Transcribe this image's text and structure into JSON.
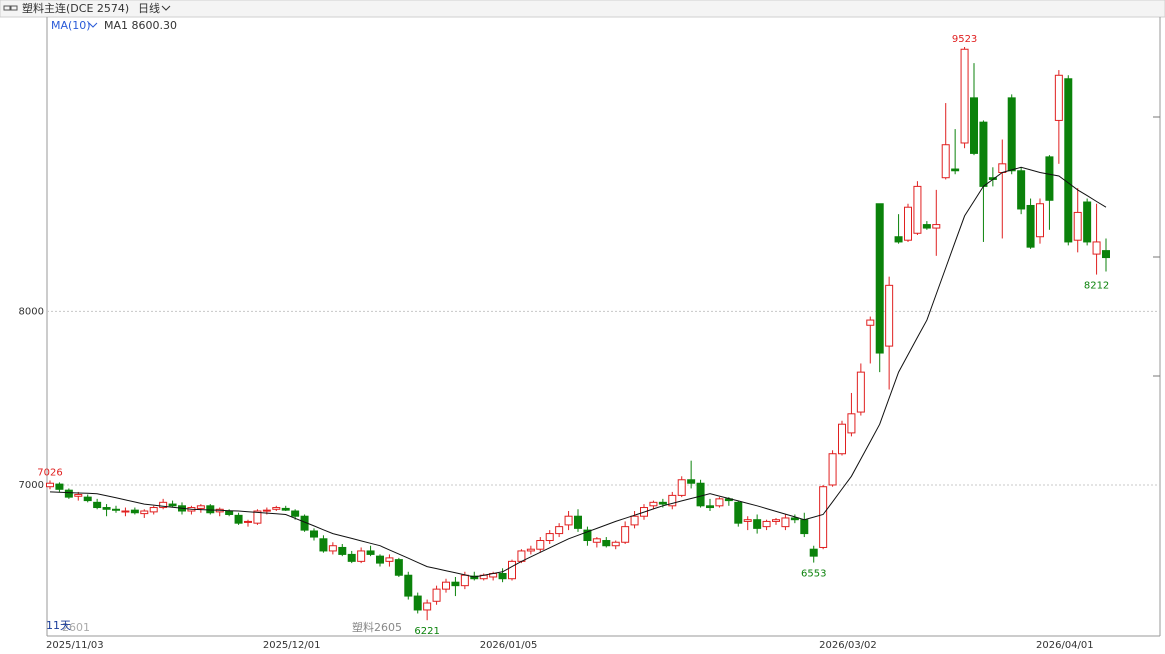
{
  "header": {
    "title": "塑料主连(DCE 2574)",
    "period": "日线"
  },
  "chart_data": {
    "type": "candlestick",
    "indicator": "MA(10)",
    "categories": [
      "2025/11/03",
      null,
      null,
      null,
      null,
      null,
      null,
      null,
      null,
      null,
      null,
      null,
      null,
      null,
      null,
      null,
      null,
      null,
      null,
      null,
      null,
      null,
      null,
      "2025/12/01",
      null,
      null,
      null,
      null,
      null,
      null,
      null,
      null,
      null,
      null,
      null,
      null,
      null,
      null,
      null,
      null,
      null,
      null,
      null,
      null,
      null,
      null,
      "2026/01/05",
      null,
      null,
      null,
      null,
      null,
      null,
      null,
      null,
      null,
      null,
      null,
      null,
      null,
      null,
      null,
      null,
      null,
      null,
      null,
      null,
      null,
      null,
      null,
      null,
      null,
      null,
      null,
      null,
      null,
      null,
      null,
      null,
      null,
      null,
      null,
      "2026/03/02",
      null,
      null,
      null,
      null,
      null,
      null,
      null,
      null,
      null,
      null,
      null,
      null,
      null,
      null,
      null,
      null,
      null,
      null,
      null,
      null,
      null,
      null,
      "2026/04/01",
      null,
      null,
      null,
      null,
      null,
      null,
      null,
      null
    ],
    "ohlc": [
      [
        6990,
        7026,
        6975,
        7010
      ],
      [
        7005,
        7015,
        6960,
        6975
      ],
      [
        6970,
        6980,
        6920,
        6930
      ],
      [
        6935,
        6960,
        6910,
        6945
      ],
      [
        6930,
        6945,
        6900,
        6910
      ],
      [
        6900,
        6920,
        6860,
        6870
      ],
      [
        6870,
        6890,
        6820,
        6860
      ],
      [
        6860,
        6880,
        6840,
        6855
      ],
      [
        6845,
        6870,
        6820,
        6850
      ],
      [
        6855,
        6870,
        6830,
        6840
      ],
      [
        6835,
        6860,
        6810,
        6850
      ],
      [
        6845,
        6880,
        6830,
        6870
      ],
      [
        6870,
        6920,
        6860,
        6900
      ],
      [
        6890,
        6910,
        6870,
        6880
      ],
      [
        6880,
        6900,
        6830,
        6850
      ],
      [
        6850,
        6880,
        6830,
        6870
      ],
      [
        6865,
        6890,
        6840,
        6880
      ],
      [
        6880,
        6890,
        6830,
        6840
      ],
      [
        6845,
        6870,
        6820,
        6860
      ],
      [
        6850,
        6860,
        6820,
        6830
      ],
      [
        6825,
        6840,
        6770,
        6780
      ],
      [
        6785,
        6800,
        6760,
        6790
      ],
      [
        6780,
        6860,
        6770,
        6850
      ],
      [
        6850,
        6870,
        6830,
        6855
      ],
      [
        6860,
        6880,
        6850,
        6870
      ],
      [
        6865,
        6880,
        6850,
        6855
      ],
      [
        6850,
        6860,
        6800,
        6820
      ],
      [
        6820,
        6830,
        6730,
        6740
      ],
      [
        6735,
        6750,
        6680,
        6700
      ],
      [
        6690,
        6710,
        6610,
        6620
      ],
      [
        6620,
        6670,
        6600,
        6650
      ],
      [
        6640,
        6660,
        6590,
        6600
      ],
      [
        6600,
        6620,
        6550,
        6560
      ],
      [
        6560,
        6640,
        6550,
        6620
      ],
      [
        6620,
        6650,
        6590,
        6600
      ],
      [
        6590,
        6600,
        6530,
        6550
      ],
      [
        6560,
        6600,
        6530,
        6580
      ],
      [
        6570,
        6580,
        6470,
        6480
      ],
      [
        6480,
        6500,
        6340,
        6360
      ],
      [
        6360,
        6380,
        6260,
        6280
      ],
      [
        6280,
        6340,
        6221,
        6320
      ],
      [
        6330,
        6420,
        6310,
        6400
      ],
      [
        6400,
        6460,
        6380,
        6440
      ],
      [
        6440,
        6470,
        6360,
        6420
      ],
      [
        6420,
        6500,
        6400,
        6480
      ],
      [
        6475,
        6500,
        6450,
        6460
      ],
      [
        6460,
        6490,
        6450,
        6480
      ],
      [
        6470,
        6500,
        6450,
        6490
      ],
      [
        6490,
        6520,
        6440,
        6460
      ],
      [
        6460,
        6570,
        6450,
        6560
      ],
      [
        6560,
        6630,
        6550,
        6620
      ],
      [
        6620,
        6650,
        6600,
        6630
      ],
      [
        6630,
        6700,
        6610,
        6680
      ],
      [
        6680,
        6740,
        6660,
        6720
      ],
      [
        6720,
        6780,
        6700,
        6760
      ],
      [
        6770,
        6850,
        6740,
        6820
      ],
      [
        6820,
        6860,
        6730,
        6750
      ],
      [
        6740,
        6760,
        6650,
        6680
      ],
      [
        6670,
        6700,
        6640,
        6690
      ],
      [
        6680,
        6700,
        6640,
        6650
      ],
      [
        6650,
        6680,
        6630,
        6670
      ],
      [
        6670,
        6790,
        6660,
        6760
      ],
      [
        6770,
        6850,
        6750,
        6820
      ],
      [
        6820,
        6890,
        6800,
        6870
      ],
      [
        6880,
        6910,
        6860,
        6900
      ],
      [
        6900,
        6920,
        6870,
        6890
      ],
      [
        6880,
        6960,
        6860,
        6940
      ],
      [
        6940,
        7050,
        6930,
        7030
      ],
      [
        7030,
        7140,
        6980,
        7010
      ],
      [
        7010,
        7030,
        6870,
        6880
      ],
      [
        6880,
        6920,
        6850,
        6870
      ],
      [
        6880,
        6930,
        6870,
        6920
      ],
      [
        6920,
        6930,
        6880,
        6910
      ],
      [
        6900,
        6910,
        6760,
        6780
      ],
      [
        6790,
        6820,
        6740,
        6800
      ],
      [
        6800,
        6830,
        6720,
        6750
      ],
      [
        6760,
        6800,
        6740,
        6790
      ],
      [
        6790,
        6810,
        6770,
        6800
      ],
      [
        6760,
        6830,
        6740,
        6810
      ],
      [
        6810,
        6830,
        6780,
        6800
      ],
      [
        6800,
        6840,
        6700,
        6720
      ],
      [
        6630,
        6650,
        6553,
        6590
      ],
      [
        6640,
        7000,
        6630,
        6990
      ],
      [
        7000,
        7200,
        6990,
        7180
      ],
      [
        7180,
        7370,
        7170,
        7350
      ],
      [
        7300,
        7530,
        7280,
        7410
      ],
      [
        7420,
        7700,
        7400,
        7650
      ],
      [
        7920,
        7970,
        7700,
        7950
      ],
      [
        8620,
        8620,
        7650,
        7760
      ],
      [
        7800,
        8200,
        7550,
        8150
      ],
      [
        8430,
        8560,
        8390,
        8400
      ],
      [
        8410,
        8620,
        8400,
        8600
      ],
      [
        8450,
        8750,
        8440,
        8720
      ],
      [
        8500,
        8520,
        8470,
        8480
      ],
      [
        8480,
        8700,
        8320,
        8500
      ],
      [
        8770,
        9200,
        8760,
        8960
      ],
      [
        8820,
        9050,
        8790,
        8810
      ],
      [
        8970,
        9523,
        8940,
        9510
      ],
      [
        9230,
        9430,
        8900,
        8910
      ],
      [
        9090,
        9100,
        8400,
        8720
      ],
      [
        8770,
        8830,
        8720,
        8760
      ],
      [
        8800,
        8990,
        8420,
        8850
      ],
      [
        9230,
        9250,
        8790,
        8810
      ],
      [
        8810,
        8830,
        8560,
        8590
      ],
      [
        8610,
        8650,
        8360,
        8370
      ],
      [
        8430,
        8650,
        8390,
        8620
      ],
      [
        8890,
        8900,
        8470,
        8640
      ],
      [
        9100,
        9390,
        8850,
        9360
      ],
      [
        9340,
        9360,
        8380,
        8400
      ],
      [
        8410,
        8710,
        8340,
        8570
      ],
      [
        8630,
        8650,
        8380,
        8400
      ],
      [
        8330,
        8620,
        8212,
        8400
      ],
      [
        8350,
        8420,
        8230,
        8310
      ]
    ],
    "ma": {
      "name": "MA1 8600.30",
      "color": "#111111",
      "values": [
        6960,
        6958,
        6956,
        6954,
        6952,
        6950,
        6938,
        6926,
        6914,
        6902,
        6890,
        6884,
        6878,
        6872,
        6866,
        6860,
        6858,
        6856,
        6854,
        6852,
        6850,
        6846,
        6842,
        6838,
        6834,
        6830,
        6808,
        6786,
        6764,
        6742,
        6720,
        6706,
        6692,
        6678,
        6664,
        6650,
        6626,
        6602,
        6578,
        6554,
        6530,
        6518,
        6506,
        6494,
        6482,
        6470,
        6480,
        6490,
        6500,
        6530,
        6560,
        6586,
        6612,
        6638,
        6664,
        6690,
        6710,
        6730,
        6750,
        6770,
        6790,
        6808,
        6826,
        6844,
        6862,
        6880,
        6894,
        6908,
        6922,
        6936,
        6950,
        6936,
        6922,
        6908,
        6894,
        6880,
        6864,
        6848,
        6832,
        6816,
        6800,
        6815,
        6830,
        6903,
        6977,
        7050,
        7150,
        7250,
        7350,
        7500,
        7650,
        7750,
        7850,
        7950,
        8100,
        8250,
        8400,
        8550,
        8635,
        8720,
        8760,
        8800,
        8815,
        8830,
        8815,
        8800,
        8790,
        8780,
        8740,
        8700,
        8667,
        8633,
        8600.3
      ]
    },
    "up_color": "#e02020",
    "down_color": "#0b820b",
    "ylim": [
      6130,
      9690
    ],
    "yticks": [
      7000,
      8000
    ],
    "grid": true,
    "extremes": [
      7026,
      9523,
      6221,
      6553,
      8212
    ],
    "watermark": "塑料2605",
    "span_label": "11天",
    "contract_label": "2601"
  }
}
